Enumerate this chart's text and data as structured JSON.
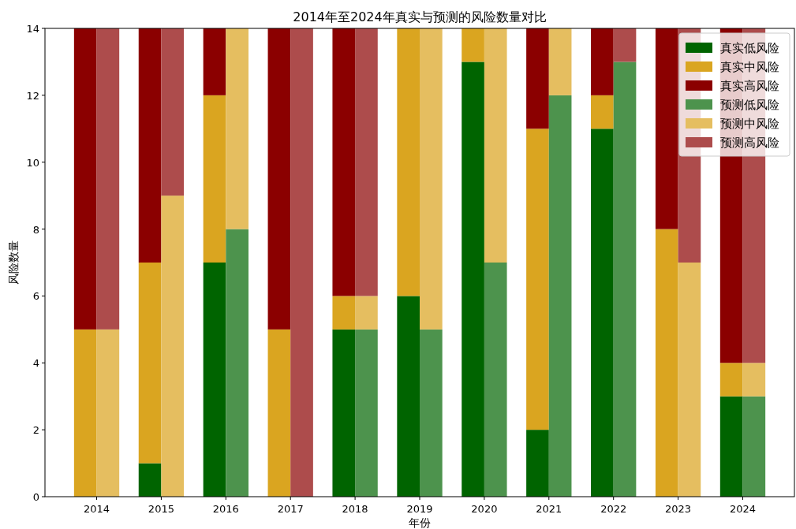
{
  "chart_data": {
    "type": "bar",
    "title": "2014年至2024年真实与预测的风险数量对比",
    "xlabel": "年份",
    "ylabel": "风险数量",
    "categories": [
      "2014",
      "2015",
      "2016",
      "2017",
      "2018",
      "2019",
      "2020",
      "2021",
      "2022",
      "2023",
      "2024"
    ],
    "ylim": [
      0,
      14
    ],
    "yticks": [
      0,
      2,
      4,
      6,
      8,
      10,
      12,
      14
    ],
    "legend": "top right",
    "series": [
      {
        "name": "真实低风险",
        "color": "#006400",
        "base": [
          null,
          0,
          0,
          null,
          0,
          0,
          0,
          0,
          0,
          null,
          0
        ],
        "values": [
          null,
          1,
          7,
          null,
          5,
          6,
          13,
          2,
          11,
          null,
          3
        ]
      },
      {
        "name": "真实中风险",
        "color": "#daa520",
        "base": [
          0,
          1,
          7,
          0,
          5,
          6,
          13,
          2,
          11,
          0,
          3
        ],
        "values": [
          5,
          6,
          5,
          5,
          1,
          8,
          1,
          9,
          1,
          8,
          1
        ]
      },
      {
        "name": "真实高风险",
        "color": "#8b0000",
        "base": [
          5,
          7,
          12,
          5,
          6,
          null,
          null,
          11,
          12,
          8,
          4
        ],
        "values": [
          9,
          7,
          2,
          9,
          8,
          null,
          null,
          3,
          2,
          6,
          10
        ]
      },
      {
        "name": "预测低风险",
        "color": "#4d934d",
        "base": [
          null,
          null,
          0,
          null,
          0,
          0,
          0,
          0,
          0,
          null,
          0
        ],
        "values": [
          null,
          null,
          8,
          null,
          5,
          5,
          7,
          12,
          13,
          null,
          3
        ]
      },
      {
        "name": "预测中风险",
        "color": "#e5be60",
        "base": [
          0,
          0,
          8,
          null,
          5,
          5,
          7,
          12,
          null,
          0,
          3
        ],
        "values": [
          5,
          9,
          6,
          null,
          1,
          9,
          7,
          2,
          null,
          7,
          1
        ]
      },
      {
        "name": "预测高风险",
        "color": "#ad4c4c",
        "base": [
          5,
          9,
          null,
          0,
          6,
          null,
          null,
          null,
          13,
          7,
          4
        ],
        "values": [
          9,
          5,
          null,
          14,
          8,
          null,
          null,
          null,
          1,
          7,
          10
        ]
      }
    ]
  }
}
